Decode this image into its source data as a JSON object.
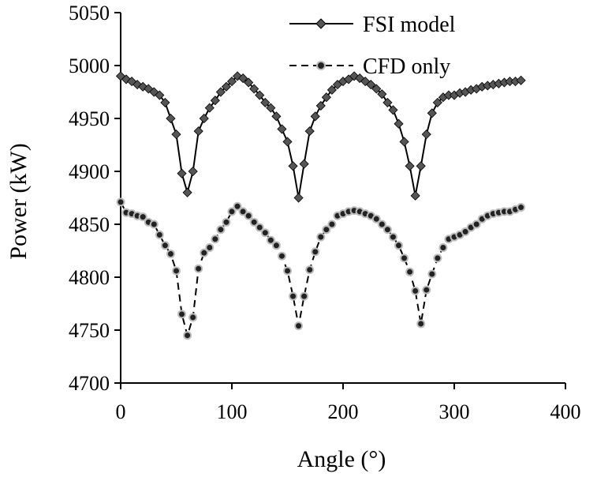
{
  "chart_data": {
    "type": "line",
    "title": "",
    "xlabel": "Angle (°)",
    "ylabel": "Power (kW)",
    "xlim": [
      0,
      400
    ],
    "ylim": [
      4700,
      5050
    ],
    "xticks": [
      0,
      100,
      200,
      300,
      400
    ],
    "yticks": [
      4700,
      4750,
      4800,
      4850,
      4900,
      4950,
      5000,
      5050
    ],
    "grid": false,
    "legend": "top-right",
    "series": [
      {
        "name": "FSI model",
        "style": "solid",
        "marker": "diamond",
        "color": "#000000",
        "marker_color": "#555555",
        "x": [
          0,
          5,
          10,
          15,
          20,
          25,
          30,
          35,
          40,
          45,
          50,
          55,
          60,
          65,
          70,
          75,
          80,
          85,
          90,
          95,
          100,
          105,
          110,
          115,
          120,
          125,
          130,
          135,
          140,
          145,
          150,
          155,
          160,
          165,
          170,
          175,
          180,
          185,
          190,
          195,
          200,
          205,
          210,
          215,
          220,
          225,
          230,
          235,
          240,
          245,
          250,
          255,
          260,
          265,
          270,
          275,
          280,
          285,
          290,
          295,
          300,
          305,
          310,
          315,
          320,
          325,
          330,
          335,
          340,
          345,
          350,
          355,
          360
        ],
        "y": [
          4990,
          4987,
          4985,
          4982,
          4980,
          4978,
          4975,
          4972,
          4965,
          4950,
          4935,
          4898,
          4880,
          4900,
          4938,
          4950,
          4960,
          4967,
          4975,
          4980,
          4985,
          4990,
          4988,
          4984,
          4978,
          4972,
          4965,
          4960,
          4952,
          4940,
          4928,
          4905,
          4875,
          4907,
          4938,
          4952,
          4962,
          4970,
          4977,
          4982,
          4985,
          4987,
          4990,
          4988,
          4985,
          4982,
          4978,
          4973,
          4965,
          4958,
          4945,
          4928,
          4905,
          4877,
          4905,
          4935,
          4955,
          4965,
          4970,
          4972,
          4972,
          4974,
          4975,
          4977,
          4978,
          4980,
          4981,
          4982,
          4983,
          4984,
          4985,
          4985,
          4986
        ]
      },
      {
        "name": "CFD only",
        "style": "dashed",
        "marker": "circle",
        "color": "#000000",
        "marker_color": "#222222",
        "x": [
          0,
          5,
          10,
          15,
          20,
          25,
          30,
          35,
          40,
          45,
          50,
          55,
          60,
          65,
          70,
          75,
          80,
          85,
          90,
          95,
          100,
          105,
          110,
          115,
          120,
          125,
          130,
          135,
          140,
          145,
          150,
          155,
          160,
          165,
          170,
          175,
          180,
          185,
          190,
          195,
          200,
          205,
          210,
          215,
          220,
          225,
          230,
          235,
          240,
          245,
          250,
          255,
          260,
          265,
          270,
          275,
          280,
          285,
          290,
          295,
          300,
          305,
          310,
          315,
          320,
          325,
          330,
          335,
          340,
          345,
          350,
          355,
          360
        ],
        "y": [
          4871,
          4861,
          4860,
          4858,
          4857,
          4852,
          4850,
          4840,
          4830,
          4822,
          4806,
          4765,
          4745,
          4762,
          4808,
          4823,
          4828,
          4836,
          4845,
          4852,
          4862,
          4867,
          4862,
          4858,
          4852,
          4847,
          4842,
          4835,
          4830,
          4820,
          4806,
          4782,
          4754,
          4782,
          4807,
          4824,
          4838,
          4845,
          4850,
          4858,
          4860,
          4862,
          4863,
          4862,
          4860,
          4858,
          4855,
          4850,
          4845,
          4838,
          4830,
          4818,
          4805,
          4787,
          4756,
          4788,
          4803,
          4818,
          4828,
          4836,
          4838,
          4840,
          4843,
          4847,
          4850,
          4855,
          4858,
          4860,
          4861,
          4862,
          4862,
          4864,
          4866
        ]
      }
    ]
  }
}
